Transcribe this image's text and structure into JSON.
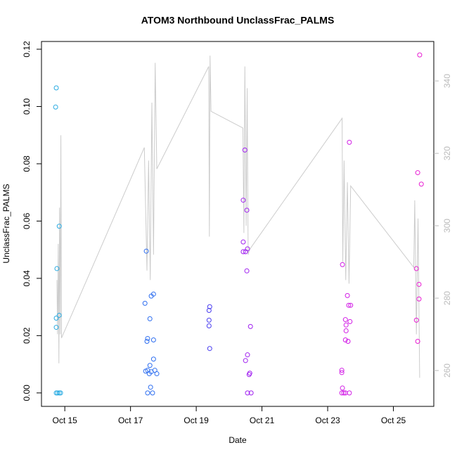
{
  "chart_data": {
    "type": "scatter",
    "title": "ATOM3 Northbound UnclassFrac_PALMS",
    "xlabel": "Date",
    "ylabel": "UnclassFrac_PALMS",
    "xlim": [
      14.29,
      26.23
    ],
    "ylim": [
      -0.0047,
      0.1227
    ],
    "y2lim": [
      250.1,
      350.9
    ],
    "xticks": [
      {
        "value": 15,
        "label": "Oct 15"
      },
      {
        "value": 17,
        "label": "Oct 17"
      },
      {
        "value": 19,
        "label": "Oct 19"
      },
      {
        "value": 21,
        "label": "Oct 21"
      },
      {
        "value": 23,
        "label": "Oct 23"
      },
      {
        "value": 25,
        "label": "Oct 25"
      }
    ],
    "yticks": [
      {
        "value": 0,
        "label": "0.00"
      },
      {
        "value": 0.02,
        "label": "0.02"
      },
      {
        "value": 0.04,
        "label": "0.04"
      },
      {
        "value": 0.06,
        "label": "0.06"
      },
      {
        "value": 0.08,
        "label": "0.08"
      },
      {
        "value": 0.1,
        "label": "0.10"
      },
      {
        "value": 0.12,
        "label": "0.12"
      }
    ],
    "y2ticks": [
      260,
      280,
      300,
      320,
      340
    ],
    "series": [
      {
        "type": "line",
        "axis": "y2",
        "color": "#cccccc",
        "x": [
          14.76,
          14.78,
          14.8,
          14.82,
          14.84,
          14.86,
          14.88,
          14.9,
          17.42,
          17.5,
          17.55,
          17.6,
          17.65,
          17.7,
          17.75,
          17.8,
          19.38,
          19.4,
          19.42,
          19.45,
          20.42,
          20.45,
          20.48,
          20.52,
          20.55,
          20.58,
          20.62,
          23.44,
          23.46,
          23.5,
          23.55,
          23.6,
          23.65,
          23.7,
          25.62,
          25.65,
          25.7,
          25.75,
          25.8
        ],
        "values": [
          285,
          270,
          295,
          262,
          305,
          270,
          325,
          269,
          321.6,
          287.6,
          318,
          285,
          334,
          292,
          345,
          315.7,
          344,
          297,
          347,
          331.6,
          327,
          298,
          344,
          300,
          338,
          292,
          293.4,
          329.7,
          290,
          318,
          285,
          312,
          284,
          311,
          288.5,
          307,
          270,
          302,
          258
        ]
      },
      {
        "color": "#29abe2",
        "x": [
          14.74,
          14.72,
          14.83,
          14.76,
          14.83,
          14.74,
          14.74,
          14.74,
          14.78,
          14.83,
          14.87
        ],
        "values": [
          0.1065,
          0.0998,
          0.0582,
          0.0434,
          0.0271,
          0.0261,
          0.0229,
          0,
          0,
          0,
          0
        ]
      },
      {
        "color": "#2f6ff0",
        "x": [
          17.44,
          17.48,
          17.52,
          17.5,
          17.59,
          17.63,
          17.7,
          17.7,
          17.7,
          17.59,
          17.46,
          17.52,
          17.57,
          17.63,
          17.74,
          17.8,
          17.52,
          17.67,
          17.61
        ],
        "values": [
          0.0313,
          0.0495,
          0.019,
          0.018,
          0.0259,
          0.0338,
          0.0345,
          0.0185,
          0.0118,
          0.0096,
          0.0076,
          0.0079,
          0.0067,
          0.0074,
          0.0079,
          0.0067,
          0,
          0,
          0.002
        ]
      },
      {
        "color": "#4a3ef0",
        "x": [
          19.39,
          19.39,
          19.39,
          19.41,
          19.41
        ],
        "values": [
          0.0288,
          0.0254,
          0.0234,
          0.0301,
          0.0155
        ]
      },
      {
        "color": "#a020f0",
        "x": [
          20.48,
          20.43,
          20.54,
          20.43,
          20.43,
          20.5,
          20.56,
          20.54,
          20.65,
          20.56,
          20.5,
          20.63,
          20.61,
          20.56,
          20.67
        ],
        "values": [
          0.0848,
          0.0673,
          0.0638,
          0.0527,
          0.0493,
          0.0493,
          0.0503,
          0.0426,
          0.0232,
          0.0133,
          0.0113,
          0.0069,
          0.0064,
          0,
          0
        ]
      },
      {
        "color": "#d21ee6",
        "x": [
          23.45,
          23.43,
          23.43,
          23.45,
          23.43,
          23.49,
          23.54,
          23.66,
          23.66,
          23.6,
          23.64,
          23.7,
          23.54,
          23.68,
          23.56,
          23.56,
          23.54,
          23.62
        ],
        "values": [
          0.0448,
          0.0079,
          0.0071,
          0.0017,
          0,
          0,
          0,
          0,
          0.0875,
          0.034,
          0.0306,
          0.0306,
          0.0256,
          0.0249,
          0.0237,
          0.0217,
          0.0185,
          0.018
        ]
      },
      {
        "color": "#e81ed2",
        "x": [
          25.8,
          25.74,
          25.85,
          25.7,
          25.78,
          25.78,
          25.7,
          25.74
        ],
        "values": [
          0.118,
          0.0769,
          0.0729,
          0.0434,
          0.0379,
          0.0328,
          0.0254,
          0.018
        ]
      }
    ]
  }
}
